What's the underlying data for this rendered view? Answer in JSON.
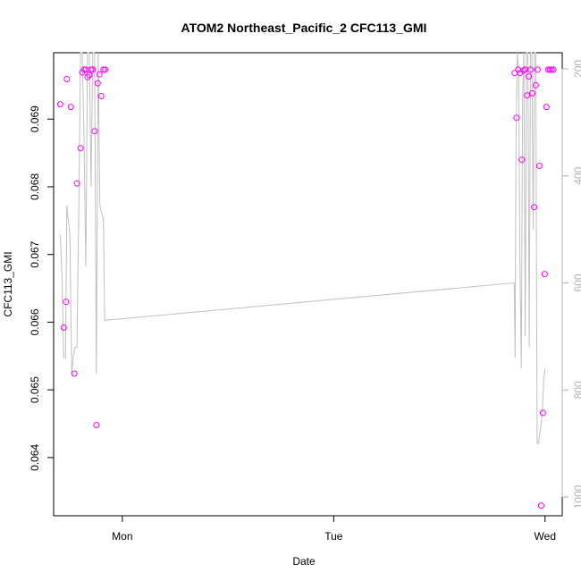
{
  "chart_data": {
    "type": "scatter",
    "title": "ATOM2 Northeast_Pacific_2 CFC113_GMI",
    "xlabel": "Date",
    "ylabel": "CFC113_GMI",
    "x_ticks": [
      "Mon",
      "Tue",
      "Wed"
    ],
    "y_ticks": [
      "0.064",
      "0.065",
      "0.066",
      "0.067",
      "0.068",
      "0.069"
    ],
    "y2_ticks": [
      "200",
      "400",
      "600",
      "800",
      "1000"
    ],
    "xlim_hours": [
      -15.6,
      99.9
    ],
    "ylim": [
      0.06314,
      0.06998
    ],
    "y2lim": [
      1035,
      170
    ],
    "colors": {
      "points": "#ff00ff",
      "line": "#c0c0c0",
      "right_axis": "#b0b0b0"
    },
    "series": [
      {
        "role": "points",
        "x": [
          -14.1,
          -13.3,
          -12.8,
          -12.6,
          -11.7,
          -10.9,
          -10.3,
          -9.5,
          -9.1,
          -8.7,
          -8.3,
          -7.9,
          -7.5,
          -7.1,
          -6.7,
          -6.3,
          -5.9,
          -5.6,
          -5.2,
          -4.8,
          -4.3,
          -3.9,
          89.1,
          89.5,
          89.9,
          90.3,
          90.7,
          91.1,
          91.5,
          91.9,
          92.3,
          92.7,
          93.1,
          93.5,
          93.9,
          94.3,
          94.7,
          95.1,
          95.5,
          95.9,
          96.3,
          96.7,
          97.1,
          97.5,
          97.9
        ],
        "y": [
          0.06922,
          0.06592,
          0.0663,
          0.06959,
          0.06918,
          0.06524,
          0.06805,
          0.06857,
          0.06969,
          0.06973,
          0.06973,
          0.06962,
          0.06965,
          0.06973,
          0.06973,
          0.06882,
          0.06448,
          0.06953,
          0.06966,
          0.06934,
          0.06973,
          0.06973,
          0.06968,
          0.06902,
          0.06973,
          0.06968,
          0.0684,
          0.06972,
          0.06973,
          0.06935,
          0.06963,
          0.06973,
          0.06938,
          0.0677,
          0.0695,
          0.06973,
          0.06831,
          0.06329,
          0.06466,
          0.06671,
          0.06918,
          0.06973,
          0.06973,
          0.06973,
          0.06973
        ]
      },
      {
        "role": "line",
        "x": [
          -14.1,
          -13.7,
          -13.3,
          -12.9,
          -12.6,
          -12.3,
          -11.9,
          -11.5,
          -11.1,
          -10.7,
          -10.3,
          -9.9,
          -9.5,
          -9.1,
          -8.7,
          -8.3,
          -7.9,
          -7.5,
          -7.1,
          -6.7,
          -6.3,
          -5.9,
          -5.5,
          -5.1,
          -4.7,
          -4.3,
          -4.0,
          89.0,
          89.2,
          89.4,
          89.7,
          90.0,
          90.3,
          90.6,
          90.9,
          91.2,
          91.5,
          91.8,
          92.1,
          92.4,
          92.7,
          93.0,
          93.3,
          93.6,
          93.9,
          94.2,
          94.5,
          94.8,
          95.1,
          95.4,
          95.7,
          96.0
        ],
        "y2": [
          510,
          590,
          740,
          740,
          455,
          480,
          510,
          770,
          735,
          720,
          720,
          470,
          170,
          170,
          330,
          570,
          170,
          170,
          420,
          170,
          170,
          770,
          170,
          455,
          470,
          480,
          670,
          600,
          740,
          330,
          170,
          200,
          560,
          760,
          250,
          170,
          700,
          170,
          170,
          720,
          170,
          170,
          500,
          170,
          170,
          900,
          900,
          880,
          865,
          840,
          780,
          760
        ]
      }
    ]
  }
}
